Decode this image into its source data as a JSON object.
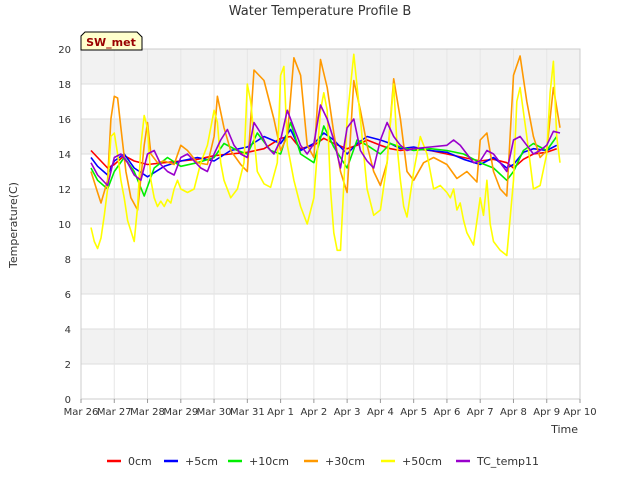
{
  "chart_data": {
    "type": "line",
    "title": "Water Temperature Profile B",
    "xlabel": "Time",
    "ylabel": "Temperature(C)",
    "badge": "SW_met",
    "ylim": [
      0,
      20
    ],
    "yticks": [
      0,
      2,
      4,
      6,
      8,
      10,
      12,
      14,
      16,
      18,
      20
    ],
    "xlim": [
      0,
      15
    ],
    "xticks": [
      {
        "label": "Mar 26",
        "x": 0
      },
      {
        "label": "Mar 27",
        "x": 1
      },
      {
        "label": "Mar 28",
        "x": 2
      },
      {
        "label": "Mar 29",
        "x": 3
      },
      {
        "label": "Mar 30",
        "x": 4
      },
      {
        "label": "Mar 31",
        "x": 5
      },
      {
        "label": "Apr 1",
        "x": 6
      },
      {
        "label": "Apr 2",
        "x": 7
      },
      {
        "label": "Apr 3",
        "x": 8
      },
      {
        "label": "Apr 4",
        "x": 9
      },
      {
        "label": "Apr 5",
        "x": 10
      },
      {
        "label": "Apr 6",
        "x": 11
      },
      {
        "label": "Apr 7",
        "x": 12
      },
      {
        "label": "Apr 8",
        "x": 13
      },
      {
        "label": "Apr 9",
        "x": 14
      },
      {
        "label": "Apr 10",
        "x": 15
      }
    ],
    "grid": true,
    "banded_background": true,
    "legend_position": "bottom",
    "series": [
      {
        "name": "0cm",
        "color": "#ff0000",
        "x": [
          0.3,
          0.5,
          0.8,
          1.0,
          1.3,
          1.6,
          2.0,
          2.5,
          3.0,
          3.5,
          4.0,
          4.5,
          5.0,
          5.5,
          6.0,
          6.3,
          6.6,
          7.0,
          7.3,
          7.6,
          8.0,
          8.3,
          8.6,
          9.0,
          9.3,
          9.6,
          10.0,
          10.5,
          11.0,
          11.5,
          12.0,
          12.4,
          12.8,
          13.0,
          13.3,
          13.6,
          14.0,
          14.3
        ],
        "y": [
          14.2,
          13.8,
          13.2,
          13.4,
          13.9,
          13.6,
          13.4,
          13.5,
          13.6,
          13.7,
          13.9,
          14.0,
          14.1,
          14.3,
          14.9,
          15.0,
          14.3,
          14.5,
          14.9,
          14.6,
          14.3,
          14.5,
          14.8,
          14.5,
          14.3,
          14.2,
          14.3,
          14.2,
          14.0,
          13.8,
          13.6,
          13.7,
          13.5,
          13.2,
          13.7,
          14.0,
          14.1,
          14.3
        ]
      },
      {
        "name": "+5cm",
        "color": "#0000ff",
        "x": [
          0.3,
          0.5,
          0.8,
          1.0,
          1.3,
          1.6,
          2.0,
          2.5,
          3.0,
          3.5,
          4.0,
          4.5,
          5.0,
          5.5,
          6.0,
          6.3,
          6.6,
          7.0,
          7.3,
          7.6,
          8.0,
          8.3,
          8.6,
          9.0,
          9.3,
          9.6,
          10.0,
          10.5,
          11.0,
          11.5,
          12.0,
          12.4,
          12.8,
          13.0,
          13.3,
          13.6,
          14.0,
          14.3
        ],
        "y": [
          13.8,
          13.3,
          12.8,
          13.6,
          14.0,
          13.2,
          12.7,
          13.3,
          13.6,
          13.8,
          13.6,
          14.2,
          14.4,
          15.0,
          14.6,
          15.4,
          14.2,
          14.6,
          15.2,
          14.8,
          14.0,
          14.6,
          15.0,
          14.8,
          14.6,
          14.3,
          14.4,
          14.2,
          14.1,
          13.7,
          13.4,
          13.8,
          13.2,
          13.4,
          14.1,
          14.3,
          14.2,
          14.5
        ]
      },
      {
        "name": "+10cm",
        "color": "#00ee00",
        "x": [
          0.3,
          0.5,
          0.8,
          1.0,
          1.3,
          1.6,
          1.9,
          2.2,
          2.6,
          3.0,
          3.5,
          4.0,
          4.3,
          4.7,
          5.0,
          5.3,
          5.7,
          6.0,
          6.3,
          6.6,
          7.0,
          7.3,
          7.6,
          8.0,
          8.3,
          8.6,
          9.0,
          9.3,
          9.6,
          10.0,
          10.5,
          11.0,
          11.5,
          12.0,
          12.4,
          12.8,
          13.0,
          13.3,
          13.6,
          14.0,
          14.3
        ],
        "y": [
          13.2,
          12.5,
          12.0,
          13.0,
          13.8,
          13.0,
          11.6,
          13.2,
          13.8,
          13.3,
          13.5,
          13.8,
          14.6,
          14.2,
          14.0,
          15.2,
          14.2,
          14.0,
          15.8,
          14.0,
          13.5,
          15.6,
          14.4,
          13.2,
          14.8,
          14.5,
          14.0,
          14.6,
          14.4,
          14.2,
          14.3,
          14.2,
          14.0,
          13.5,
          13.2,
          12.5,
          13.0,
          14.2,
          14.6,
          14.2,
          15.0
        ]
      },
      {
        "name": "+30cm",
        "color": "#ff9900",
        "x": [
          0.3,
          0.5,
          0.6,
          0.8,
          0.9,
          1.0,
          1.1,
          1.2,
          1.35,
          1.5,
          1.7,
          1.9,
          2.0,
          2.1,
          2.3,
          2.5,
          2.8,
          3.0,
          3.2,
          3.5,
          3.8,
          4.0,
          4.1,
          4.3,
          4.5,
          4.8,
          5.0,
          5.2,
          5.5,
          5.8,
          6.0,
          6.2,
          6.4,
          6.6,
          6.8,
          7.0,
          7.2,
          7.4,
          7.6,
          7.8,
          8.0,
          8.2,
          8.4,
          8.6,
          8.8,
          9.0,
          9.2,
          9.4,
          9.6,
          9.8,
          10.0,
          10.3,
          10.6,
          11.0,
          11.3,
          11.6,
          11.9,
          12.0,
          12.2,
          12.4,
          12.6,
          12.8,
          13.0,
          13.2,
          13.4,
          13.6,
          13.8,
          14.0,
          14.2,
          14.4
        ],
        "y": [
          13.0,
          11.8,
          11.2,
          12.5,
          16.0,
          17.3,
          17.2,
          15.5,
          13.0,
          11.5,
          10.8,
          14.5,
          15.8,
          14.0,
          13.5,
          13.6,
          13.4,
          14.5,
          14.2,
          13.5,
          13.4,
          15.0,
          17.3,
          15.5,
          14.2,
          13.4,
          13.0,
          18.8,
          18.2,
          16.0,
          14.2,
          15.0,
          19.5,
          18.5,
          14.5,
          13.8,
          19.4,
          17.8,
          15.2,
          13.0,
          11.8,
          18.2,
          16.5,
          14.5,
          13.0,
          12.2,
          13.5,
          18.3,
          16.0,
          13.0,
          12.5,
          13.5,
          13.8,
          13.4,
          12.6,
          13.0,
          12.4,
          14.8,
          15.2,
          13.0,
          12.0,
          11.6,
          18.5,
          19.6,
          17.0,
          15.0,
          13.8,
          14.2,
          17.8,
          15.5
        ]
      },
      {
        "name": "+50cm",
        "color": "#ffff00",
        "x": [
          0.3,
          0.4,
          0.5,
          0.6,
          0.7,
          0.8,
          0.9,
          1.0,
          1.1,
          1.2,
          1.3,
          1.4,
          1.5,
          1.6,
          1.7,
          1.8,
          1.9,
          2.0,
          2.1,
          2.2,
          2.3,
          2.4,
          2.5,
          2.6,
          2.7,
          2.8,
          2.9,
          3.0,
          3.2,
          3.4,
          3.6,
          3.8,
          4.0,
          4.1,
          4.2,
          4.3,
          4.5,
          4.7,
          4.9,
          5.0,
          5.1,
          5.2,
          5.3,
          5.5,
          5.7,
          5.9,
          6.0,
          6.1,
          6.2,
          6.4,
          6.6,
          6.8,
          7.0,
          7.1,
          7.2,
          7.3,
          7.4,
          7.5,
          7.6,
          7.7,
          7.8,
          8.0,
          8.2,
          8.4,
          8.6,
          8.8,
          9.0,
          9.2,
          9.4,
          9.5,
          9.6,
          9.7,
          9.8,
          10.0,
          10.2,
          10.4,
          10.6,
          10.8,
          11.0,
          11.1,
          11.2,
          11.3,
          11.4,
          11.5,
          11.6,
          11.8,
          12.0,
          12.1,
          12.2,
          12.3,
          12.4,
          12.6,
          12.8,
          13.0,
          13.1,
          13.2,
          13.4,
          13.6,
          13.8,
          14.0,
          14.1,
          14.2,
          14.3,
          14.4
        ],
        "y": [
          9.8,
          9.0,
          8.6,
          9.2,
          10.5,
          12.0,
          15.0,
          15.2,
          14.0,
          12.5,
          11.5,
          10.2,
          9.6,
          9.0,
          11.0,
          14.5,
          16.2,
          15.5,
          12.5,
          11.5,
          11.0,
          11.3,
          11.0,
          11.4,
          11.2,
          12.0,
          12.5,
          12.0,
          11.8,
          12.0,
          13.5,
          14.5,
          16.5,
          15.8,
          13.5,
          12.5,
          11.5,
          12.0,
          13.5,
          18.0,
          17.0,
          15.0,
          13.0,
          12.3,
          12.1,
          13.5,
          18.5,
          19.0,
          14.5,
          12.5,
          11.0,
          10.0,
          11.5,
          14.0,
          16.5,
          17.5,
          16.5,
          12.0,
          9.5,
          8.5,
          8.5,
          16.0,
          19.7,
          16.0,
          12.0,
          10.5,
          10.8,
          13.5,
          18.0,
          14.5,
          12.5,
          11.0,
          10.4,
          13.0,
          15.0,
          14.0,
          12.0,
          12.2,
          11.8,
          11.5,
          12.0,
          10.8,
          11.2,
          10.2,
          9.5,
          8.8,
          11.5,
          10.5,
          12.5,
          10.0,
          9.0,
          8.5,
          8.2,
          12.5,
          17.0,
          17.8,
          15.0,
          12.0,
          12.2,
          14.0,
          17.5,
          19.3,
          15.0,
          13.5
        ]
      },
      {
        "name": "TC_temp11",
        "color": "#9900cc",
        "x": [
          0.3,
          0.5,
          0.8,
          1.0,
          1.2,
          1.4,
          1.6,
          1.8,
          2.0,
          2.2,
          2.4,
          2.6,
          2.8,
          3.0,
          3.2,
          3.4,
          3.6,
          3.8,
          4.0,
          4.2,
          4.4,
          4.6,
          4.8,
          5.0,
          5.2,
          5.4,
          5.6,
          5.8,
          6.0,
          6.2,
          6.4,
          6.6,
          6.8,
          7.0,
          7.2,
          7.4,
          7.6,
          7.8,
          8.0,
          8.2,
          8.4,
          8.6,
          8.8,
          9.0,
          9.2,
          9.4,
          9.6,
          9.8,
          10.0,
          10.5,
          11.0,
          11.2,
          11.4,
          11.6,
          11.8,
          12.0,
          12.2,
          12.4,
          12.6,
          12.8,
          13.0,
          13.2,
          13.4,
          13.6,
          13.8,
          14.0,
          14.2,
          14.4
        ],
        "y": [
          13.5,
          12.8,
          12.2,
          13.8,
          14.0,
          13.5,
          12.8,
          12.5,
          14.0,
          14.2,
          13.4,
          13.0,
          12.8,
          13.8,
          14.0,
          13.6,
          13.2,
          13.0,
          14.0,
          14.8,
          15.4,
          14.5,
          14.0,
          13.8,
          15.8,
          15.2,
          14.4,
          14.0,
          14.8,
          16.5,
          15.5,
          14.5,
          14.0,
          14.6,
          16.8,
          16.0,
          14.8,
          13.2,
          15.5,
          16.0,
          14.2,
          13.6,
          13.2,
          14.8,
          15.8,
          15.0,
          14.5,
          14.2,
          14.3,
          14.4,
          14.5,
          14.8,
          14.5,
          14.0,
          13.5,
          13.6,
          14.2,
          14.0,
          13.5,
          13.0,
          14.8,
          15.0,
          14.5,
          14.0,
          14.2,
          14.5,
          15.3,
          15.2
        ]
      }
    ]
  }
}
